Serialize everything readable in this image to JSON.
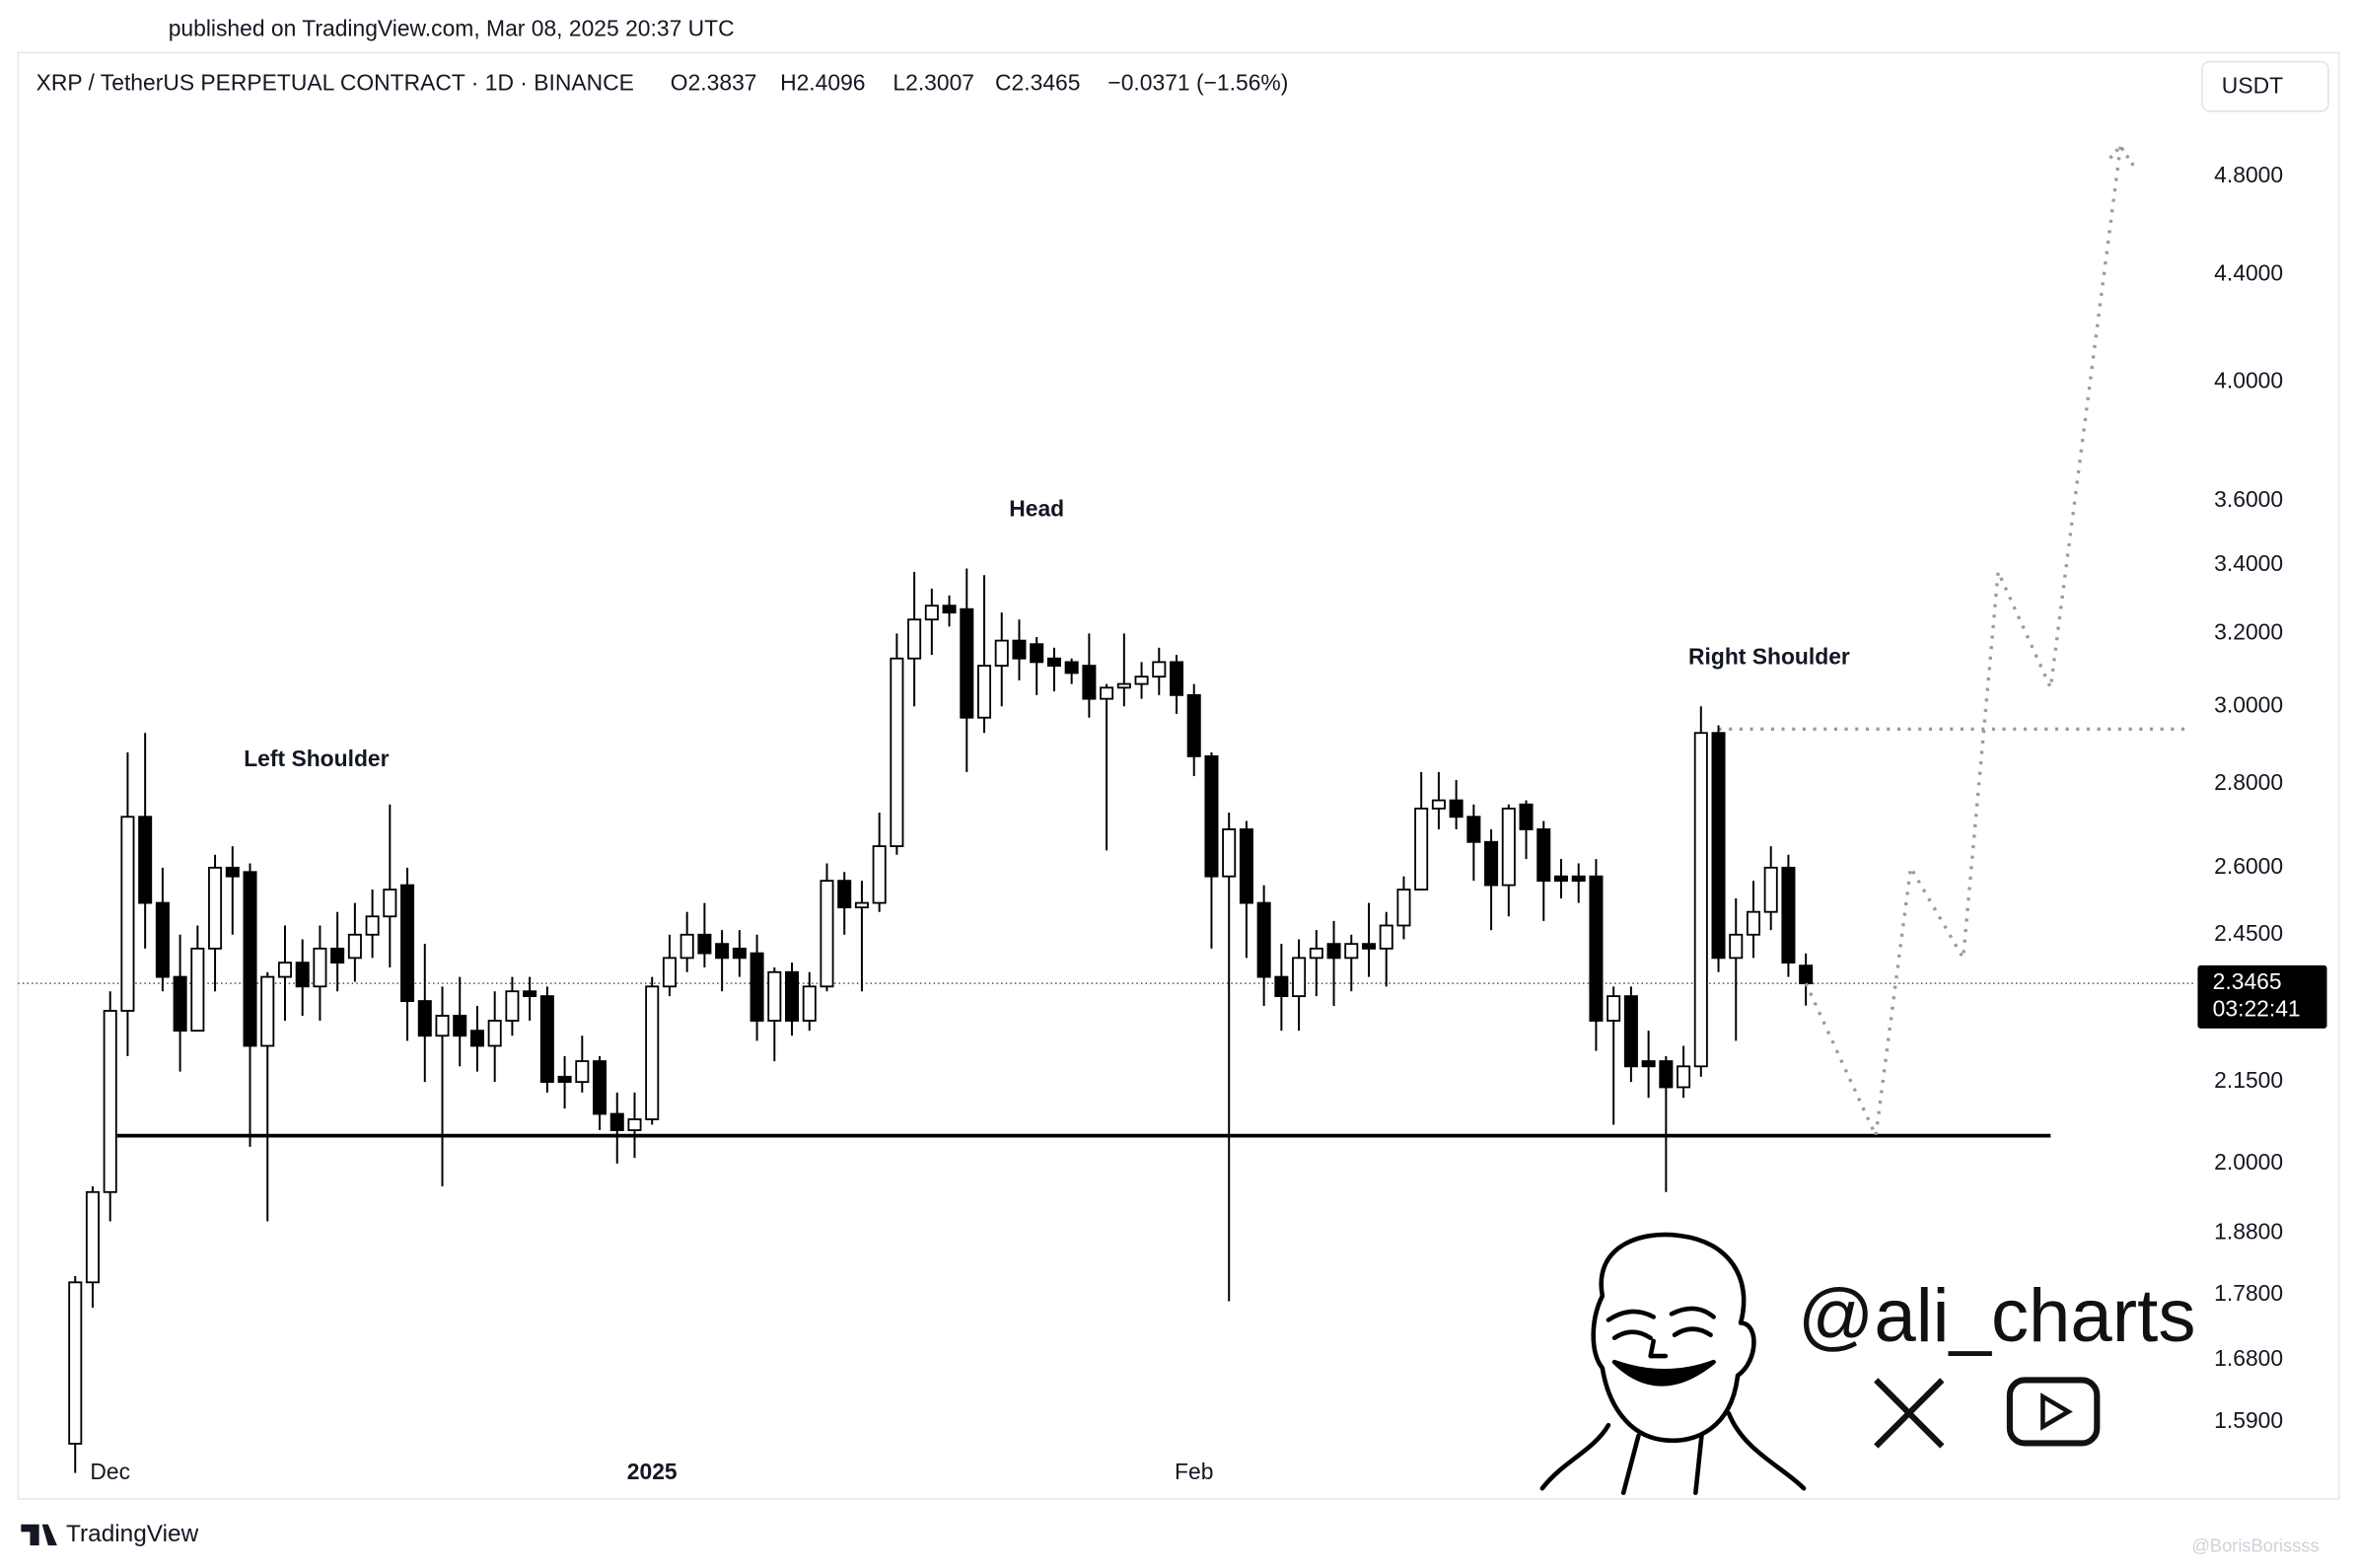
{
  "header": {
    "published": "published on TradingView.com, Mar 08, 2025 20:37 UTC"
  },
  "chart_data": {
    "type": "candlestick",
    "symbol": "XRP / TetherUS PERPETUAL CONTRACT · 1D · BINANCE",
    "ohlc_labels": [
      "O2.3837",
      "H2.4096",
      "L2.3007",
      "C2.3465"
    ],
    "change_label": "−0.0371 (−1.56%)",
    "currency": "USDT",
    "countdown": "03:22:41",
    "log_scale": true,
    "grid": false,
    "xlim": [
      -3.27,
      121.24
    ],
    "xticks": [
      {
        "value": 2,
        "label": "Dec"
      },
      {
        "value": 33,
        "label": "2025"
      },
      {
        "value": 64,
        "label": "Feb"
      }
    ],
    "ylim": [
      1.4895,
      5.321
    ],
    "yticks": [
      {
        "value": 4.8,
        "label": "4.8000"
      },
      {
        "value": 4.4,
        "label": "4.4000"
      },
      {
        "value": 4.0,
        "label": "4.0000"
      },
      {
        "value": 3.6,
        "label": "3.6000"
      },
      {
        "value": 3.4,
        "label": "3.4000"
      },
      {
        "value": 3.2,
        "label": "3.2000"
      },
      {
        "value": 3.0,
        "label": "3.0000"
      },
      {
        "value": 2.8,
        "label": "2.8000"
      },
      {
        "value": 2.6,
        "label": "2.6000"
      },
      {
        "value": 2.45,
        "label": "2.4500"
      },
      {
        "value": 2.15,
        "label": "2.1500"
      },
      {
        "value": 2.0,
        "label": "2.0000"
      },
      {
        "value": 1.88,
        "label": "1.8800"
      },
      {
        "value": 1.78,
        "label": "1.7800"
      },
      {
        "value": 1.68,
        "label": "1.6800"
      },
      {
        "value": 1.59,
        "label": "1.5900"
      }
    ],
    "up_color": "#ffffff",
    "down_color": "#000000",
    "open": [
      1.56,
      1.8,
      1.95,
      2.29,
      2.72,
      2.52,
      2.36,
      2.25,
      2.42,
      2.6,
      2.59,
      2.22,
      2.36,
      2.39,
      2.34,
      2.42,
      2.4,
      2.45,
      2.49,
      2.56,
      2.31,
      2.24,
      2.28,
      2.25,
      2.22,
      2.27,
      2.33,
      2.32,
      2.16,
      2.15,
      2.19,
      2.09,
      2.06,
      2.08,
      2.34,
      2.4,
      2.45,
      2.43,
      2.42,
      2.41,
      2.27,
      2.37,
      2.27,
      2.34,
      2.57,
      2.51,
      2.52,
      2.65,
      3.13,
      3.24,
      3.28,
      3.27,
      2.97,
      3.11,
      3.18,
      3.17,
      3.13,
      3.12,
      3.11,
      3.02,
      3.05,
      3.06,
      3.08,
      3.12,
      3.03,
      2.87,
      2.58,
      2.69,
      2.52,
      2.36,
      2.32,
      2.4,
      2.43,
      2.4,
      2.43,
      2.42,
      2.47,
      2.55,
      2.74,
      2.76,
      2.72,
      2.66,
      2.56,
      2.75,
      2.69,
      2.58,
      2.58,
      2.58,
      2.27,
      2.32,
      2.19,
      2.19,
      2.14,
      2.18,
      2.93,
      2.4,
      2.45,
      2.5,
      2.6,
      2.3837
    ],
    "high": [
      1.81,
      1.96,
      2.33,
      2.88,
      2.93,
      2.6,
      2.45,
      2.47,
      2.63,
      2.65,
      2.61,
      2.37,
      2.47,
      2.44,
      2.47,
      2.5,
      2.52,
      2.55,
      2.75,
      2.6,
      2.43,
      2.34,
      2.36,
      2.3,
      2.33,
      2.36,
      2.36,
      2.34,
      2.2,
      2.24,
      2.2,
      2.13,
      2.13,
      2.36,
      2.45,
      2.5,
      2.52,
      2.46,
      2.46,
      2.45,
      2.38,
      2.39,
      2.37,
      2.61,
      2.59,
      2.57,
      2.73,
      3.2,
      3.38,
      3.33,
      3.31,
      3.39,
      3.37,
      3.26,
      3.24,
      3.19,
      3.16,
      3.13,
      3.2,
      3.06,
      3.2,
      3.12,
      3.16,
      3.14,
      3.06,
      2.88,
      2.73,
      2.71,
      2.56,
      2.43,
      2.44,
      2.46,
      2.48,
      2.45,
      2.52,
      2.5,
      2.58,
      2.83,
      2.83,
      2.81,
      2.75,
      2.69,
      2.75,
      2.76,
      2.71,
      2.62,
      2.61,
      2.62,
      2.34,
      2.34,
      2.25,
      2.2,
      2.22,
      3.0,
      2.95,
      2.53,
      2.57,
      2.65,
      2.63,
      2.4096
    ],
    "low": [
      1.52,
      1.76,
      1.9,
      2.2,
      2.42,
      2.33,
      2.17,
      2.25,
      2.33,
      2.45,
      2.03,
      1.9,
      2.27,
      2.28,
      2.27,
      2.33,
      2.35,
      2.4,
      2.38,
      2.23,
      2.15,
      1.96,
      2.18,
      2.17,
      2.15,
      2.24,
      2.27,
      2.13,
      2.1,
      2.13,
      2.06,
      2.0,
      2.01,
      2.07,
      2.32,
      2.37,
      2.38,
      2.33,
      2.36,
      2.23,
      2.19,
      2.24,
      2.25,
      2.33,
      2.45,
      2.33,
      2.5,
      2.63,
      3.0,
      3.14,
      3.22,
      2.83,
      2.93,
      3.0,
      3.07,
      3.03,
      3.04,
      3.06,
      2.97,
      2.64,
      3.0,
      3.02,
      3.03,
      2.98,
      2.82,
      2.42,
      1.77,
      2.4,
      2.3,
      2.25,
      2.25,
      2.32,
      2.3,
      2.33,
      2.36,
      2.34,
      2.44,
      2.55,
      2.69,
      2.69,
      2.57,
      2.46,
      2.49,
      2.62,
      2.48,
      2.53,
      2.52,
      2.21,
      2.07,
      2.15,
      2.12,
      1.95,
      2.12,
      2.16,
      2.37,
      2.23,
      2.4,
      2.46,
      2.36,
      2.3007
    ],
    "close": [
      1.8,
      1.95,
      2.29,
      2.72,
      2.52,
      2.36,
      2.25,
      2.42,
      2.6,
      2.58,
      2.22,
      2.36,
      2.39,
      2.34,
      2.42,
      2.39,
      2.45,
      2.49,
      2.55,
      2.31,
      2.24,
      2.28,
      2.24,
      2.22,
      2.27,
      2.33,
      2.32,
      2.15,
      2.15,
      2.19,
      2.09,
      2.06,
      2.08,
      2.34,
      2.4,
      2.45,
      2.41,
      2.4,
      2.4,
      2.27,
      2.37,
      2.27,
      2.34,
      2.57,
      2.51,
      2.52,
      2.65,
      3.13,
      3.24,
      3.28,
      3.26,
      2.97,
      3.11,
      3.18,
      3.13,
      3.12,
      3.11,
      3.09,
      3.02,
      3.05,
      3.06,
      3.08,
      3.12,
      3.03,
      2.87,
      2.58,
      2.69,
      2.52,
      2.36,
      2.32,
      2.4,
      2.42,
      2.4,
      2.43,
      2.42,
      2.47,
      2.55,
      2.74,
      2.76,
      2.72,
      2.66,
      2.56,
      2.74,
      2.69,
      2.57,
      2.57,
      2.57,
      2.27,
      2.32,
      2.18,
      2.18,
      2.14,
      2.18,
      2.93,
      2.4,
      2.45,
      2.5,
      2.6,
      2.39,
      2.3465
    ],
    "annotations": [
      {
        "text": "Left Shoulder",
        "x": 13.8,
        "y": 2.86
      },
      {
        "text": "Head",
        "x": 55,
        "y": 3.57
      },
      {
        "text": "Right Shoulder",
        "x": 96.9,
        "y": 3.13
      }
    ],
    "support": {
      "x": [
        2.4,
        113
      ],
      "y": 2.05
    },
    "neckline": {
      "x": [
        94,
        121
      ],
      "y": 2.94
    },
    "projection": {
      "x": [
        99,
        103,
        105,
        108,
        110,
        113,
        117
      ],
      "y": [
        2.3465,
        2.05,
        2.6,
        2.4,
        3.38,
        3.05,
        4.93
      ]
    }
  },
  "watermark": {
    "handle": "@ali_charts",
    "credit": "@BorisBorissss"
  },
  "footer": {
    "brand": "TradingView"
  }
}
